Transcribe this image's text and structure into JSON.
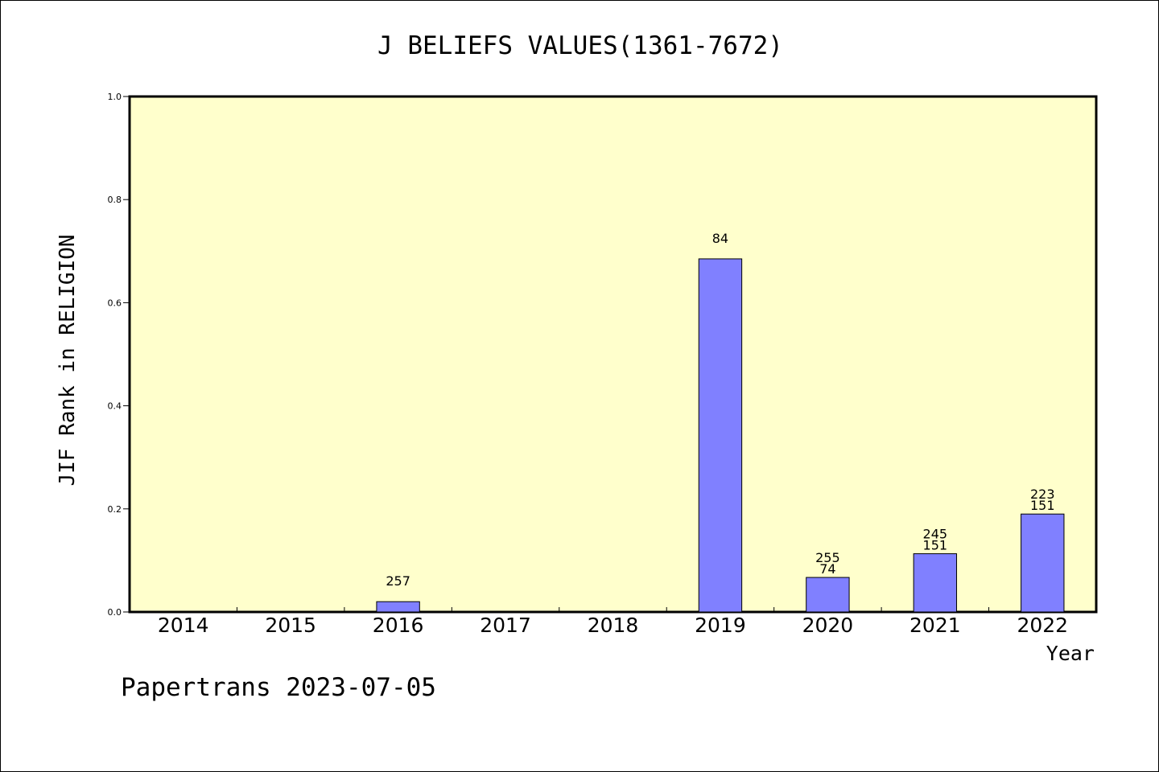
{
  "chart_data": {
    "type": "bar",
    "title": "J BELIEFS VALUES(1361-7672)",
    "xlabel": "Year",
    "ylabel": "JIF Rank in RELIGION",
    "ylim": [
      0,
      1.0
    ],
    "yticks": [
      "0.0",
      "0.2",
      "0.4",
      "0.6",
      "0.8",
      "1.0"
    ],
    "categories": [
      "2014",
      "2015",
      "2016",
      "2017",
      "2018",
      "2019",
      "2020",
      "2021",
      "2022"
    ],
    "values": [
      null,
      null,
      0.02,
      null,
      null,
      0.685,
      0.067,
      0.113,
      0.19
    ],
    "data_labels": [
      [],
      [],
      [
        "257"
      ],
      [],
      [],
      [
        "84"
      ],
      [
        "255",
        "74"
      ],
      [
        "245",
        "151"
      ],
      [
        "223",
        "151"
      ]
    ],
    "bar_color": "#8080ff",
    "plot_background": "#ffffcc",
    "grid": false
  },
  "footer": "Papertrans 2023-07-05"
}
